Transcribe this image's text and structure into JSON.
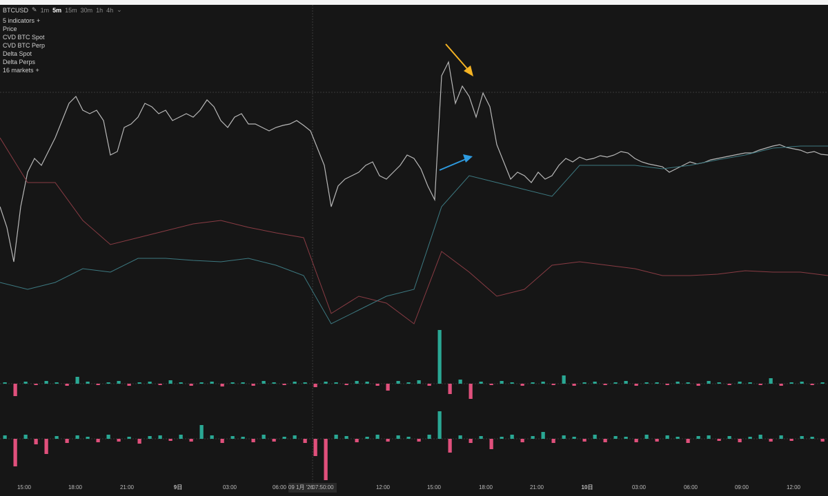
{
  "toolbar": {
    "symbol": "BTCUSD",
    "timeframes": [
      "1m",
      "5m",
      "15m",
      "30m",
      "1h",
      "4h"
    ],
    "active_timeframe": 1
  },
  "indicators": {
    "summary": "5 indicators",
    "items": [
      "Price",
      "CVD BTC Spot",
      "CVD BTC Perp",
      "Delta Spot",
      "Delta Perps"
    ],
    "markets": "16 markets"
  },
  "time_axis": {
    "labels": [
      "15:00",
      "18:00",
      "21:00",
      "9日",
      "03:00",
      "06:00",
      "12:00",
      "15:00",
      "18:00",
      "21:00",
      "10日",
      "03:00",
      "06:00",
      "09:00",
      "12:00"
    ],
    "crosshair": [
      "09 1月 '26",
      "07:50:00"
    ]
  },
  "chart_data": [
    {
      "type": "line",
      "series": [
        {
          "color": "#b8b8b8",
          "values": [
            100,
            70,
            20,
            100,
            150,
            170,
            160,
            180,
            200,
            225,
            250,
            260,
            240,
            235,
            240,
            225,
            175,
            180,
            215,
            220,
            230,
            250,
            245,
            235,
            240,
            225,
            230,
            235,
            230,
            240,
            255,
            245,
            225,
            215,
            230,
            235,
            220,
            220,
            215,
            210,
            215,
            218,
            220,
            225,
            218,
            210,
            185,
            160,
            100,
            130,
            140,
            145,
            150,
            160,
            165,
            145,
            140,
            150,
            160,
            175,
            170,
            155,
            130,
            110,
            290,
            310,
            250,
            275,
            260,
            230,
            265,
            245,
            190,
            165,
            140,
            150,
            145,
            135,
            150,
            140,
            145,
            160,
            170,
            165,
            172,
            168,
            170,
            174,
            172,
            175,
            180,
            178,
            170,
            165,
            162,
            160,
            158,
            150,
            155,
            160,
            165,
            162,
            164,
            168,
            170,
            172,
            174,
            176,
            178,
            178,
            182,
            185,
            188,
            190,
            186,
            184,
            182,
            178,
            180,
            176,
            175
          ]
        }
      ]
    },
    {
      "type": "line",
      "series": [
        {
          "color": "#8a3c44",
          "values": [
            300,
            235,
            235,
            180,
            145,
            155,
            165,
            175,
            180,
            170,
            162,
            155,
            45,
            70,
            60,
            30,
            135,
            105,
            70,
            80,
            115,
            120,
            115,
            110,
            100,
            100,
            102,
            107,
            105,
            105,
            100
          ]
        },
        {
          "color": "#3d7a82",
          "values": [
            90,
            80,
            90,
            110,
            105,
            125,
            125,
            122,
            120,
            125,
            115,
            100,
            30,
            50,
            70,
            80,
            200,
            245,
            235,
            225,
            215,
            260,
            260,
            260,
            255,
            260,
            268,
            275,
            285,
            288,
            288
          ]
        }
      ]
    },
    {
      "type": "bar",
      "color": "#2aa894",
      "negative_color": "#e0507c",
      "values": [
        2,
        -18,
        3,
        -2,
        4,
        2,
        -3,
        10,
        3,
        -2,
        2,
        4,
        -3,
        2,
        3,
        -2,
        5,
        2,
        -3,
        2,
        3,
        -4,
        2,
        2,
        -3,
        4,
        2,
        -2,
        3,
        2,
        -5,
        3,
        2,
        -2,
        4,
        3,
        -3,
        -10,
        4,
        2,
        5,
        -3,
        78,
        -15,
        6,
        -22,
        3,
        -2,
        4,
        2,
        -3,
        2,
        3,
        -2,
        12,
        -3,
        2,
        3,
        -2,
        2,
        4,
        -3,
        2,
        2,
        -2,
        3,
        2,
        -3,
        4,
        2,
        -2,
        3,
        2,
        -2,
        8,
        -3,
        2,
        3,
        -2,
        2
      ]
    },
    {
      "type": "bar",
      "color": "#2aa894",
      "negative_color": "#e0507c",
      "values": [
        5,
        -40,
        6,
        -8,
        -22,
        4,
        -6,
        5,
        3,
        -5,
        6,
        -4,
        3,
        -7,
        4,
        5,
        -3,
        6,
        -4,
        20,
        5,
        -6,
        4,
        3,
        -5,
        6,
        -4,
        3,
        5,
        -6,
        -25,
        -60,
        6,
        4,
        -5,
        3,
        6,
        -4,
        5,
        3,
        -4,
        6,
        40,
        -20,
        5,
        -6,
        4,
        -15,
        3,
        6,
        -5,
        4,
        10,
        -6,
        5,
        3,
        -4,
        6,
        -5,
        4,
        3,
        -5,
        6,
        -4,
        5,
        3,
        -6,
        4,
        5,
        -3,
        4,
        -5,
        3,
        6,
        -4,
        5,
        -3,
        4,
        3,
        -4
      ]
    }
  ]
}
